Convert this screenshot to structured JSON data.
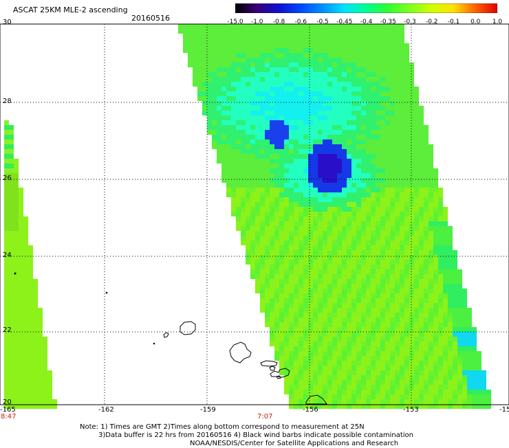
{
  "header": {
    "title": "ASCAT 25KM MLE-2 ascending",
    "date": "20160516"
  },
  "colorbar": {
    "labels": [
      "-15.0",
      "-1.0",
      "-0.8",
      "-0.6",
      "-0.5",
      "-0.45",
      "-0.4",
      "-0.35",
      "-0.3",
      "-0.2",
      "-0.1",
      "0.0",
      "1.0"
    ],
    "colors": [
      "#000000",
      "#3a007a",
      "#1010d0",
      "#0048ff",
      "#0090ff",
      "#00e0ff",
      "#00ff90",
      "#30ff30",
      "#80ff20",
      "#d0ff00",
      "#ffe000",
      "#ff6000",
      "#e00000"
    ]
  },
  "axes": {
    "lat_ticks": [
      "30",
      "28",
      "26",
      "24",
      "22",
      "20"
    ],
    "lon_ticks": [
      "-165",
      "-162",
      "-159",
      "-156",
      "-153",
      "-15"
    ]
  },
  "pass_times": [
    "8:47",
    "7:07"
  ],
  "notes": [
    "Note: 1) Times are GMT 2)Times along bottom correspond to measurement at 25N",
    "3)Data buffer is 22 hrs from 20160516 4) Black wind barbs indicate possible contamination",
    "NOAA/NESDIS/Center for Satellite Applications and Research"
  ]
}
